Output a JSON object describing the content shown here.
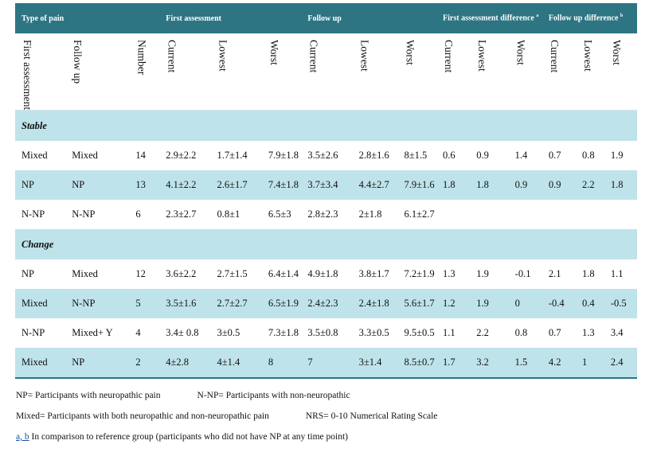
{
  "header": {
    "type_of_pain": "Type of pain",
    "first_assessment": "First assessment",
    "follow_up": "Follow up",
    "first_assessment_difference": "First assessment difference",
    "first_assessment_difference_mark": "a",
    "follow_up_difference": "Follow up difference",
    "follow_up_difference_mark": "b"
  },
  "subheaders": [
    "First assessment",
    "Follow up",
    "Number",
    "Current",
    "Lowest",
    "Worst",
    "Current",
    "Lowest",
    "Worst",
    "Current",
    "Lowest",
    "Worst",
    "Current",
    "Lowest",
    "Worst"
  ],
  "groups": [
    {
      "label": "Stable",
      "rows": [
        [
          "Mixed",
          "Mixed",
          "14",
          "2.9±2.2",
          "1.7±1.4",
          "7.9±1.8",
          "3.5±2.6",
          "2.8±1.6",
          "8±1.5",
          "0.6",
          "0.9",
          "1.4",
          "0.7",
          "0.8",
          "1.9"
        ],
        [
          "NP",
          "NP",
          "13",
          "4.1±2.2",
          "2.6±1.7",
          "7.4±1.8",
          "3.7±3.4",
          "4.4±2.7",
          "7.9±1.6",
          "1.8",
          "1.8",
          "0.9",
          "0.9",
          "2.2",
          "1.8"
        ],
        [
          "N-NP",
          "N-NP",
          "6",
          "2.3±2.7",
          "0.8±1",
          "6.5±3",
          "2.8±2.3",
          "2±1.8",
          "6.1±2.7",
          "",
          "",
          "",
          "",
          "",
          ""
        ]
      ]
    },
    {
      "label": "Change",
      "rows": [
        [
          "NP",
          "Mixed",
          "12",
          "3.6±2.2",
          "2.7±1.5",
          "6.4±1.4",
          "4.9±1.8",
          "3.8±1.7",
          "7.2±1.9",
          "1.3",
          "1.9",
          "-0.1",
          "2.1",
          "1.8",
          "1.1"
        ],
        [
          "Mixed",
          "N-NP",
          "5",
          "3.5±1.6",
          "2.7±2.7",
          "6.5±1.9",
          "2.4±2.3",
          "2.4±1.8",
          "5.6±1.7",
          "1.2",
          "1.9",
          "0",
          "-0.4",
          "0.4",
          "-0.5"
        ],
        [
          "N-NP",
          "Mixed+ Y",
          "4",
          "3.4± 0.8",
          "3±0.5",
          "7.3±1.8",
          "3.5±0.8",
          "3.3±0.5",
          "9.5±0.5",
          "1.1",
          "2.2",
          "0.8",
          "0.7",
          "1.3",
          "3.4"
        ],
        [
          "Mixed",
          "NP",
          "2",
          "4±2.8",
          "4±1.4",
          "8",
          "7",
          "3±1.4",
          "8.5±0.7",
          "1.7",
          "3.2",
          "1.5",
          "4.2",
          "1",
          "2.4"
        ]
      ]
    }
  ],
  "notes": {
    "np": "NP= Participants with neuropathic pain",
    "nnp": "N-NP= Participants with non-neuropathic",
    "mixed": "Mixed= Participants with both neuropathic and non-neuropathic pain",
    "nrs": "NRS= 0-10 Numerical Rating Scale",
    "ab_mark": "a, b",
    "ab_text": " In comparison to reference group (participants who did not have NP at any time point)"
  },
  "colors": {
    "header_bg": "#2d7583",
    "band_bg": "#bfe3ea",
    "text": "#111111"
  }
}
